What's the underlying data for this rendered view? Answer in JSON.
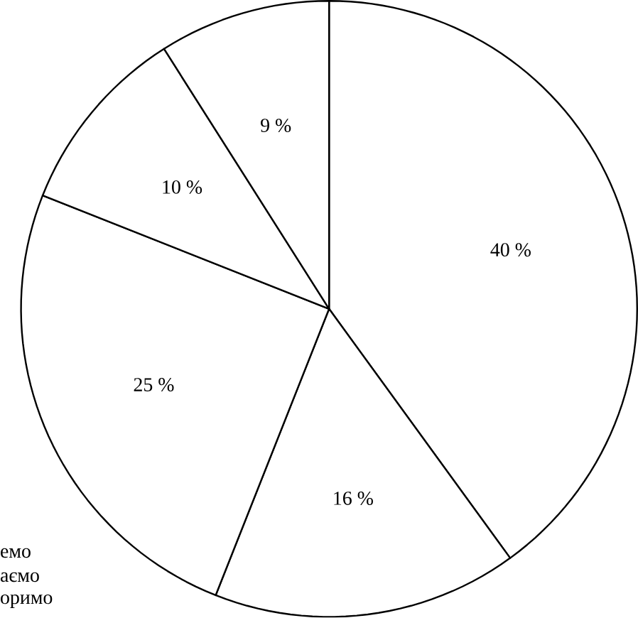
{
  "chart_data": {
    "type": "pie",
    "categories": [
      null,
      null,
      null,
      null,
      null
    ],
    "values": [
      40,
      16,
      25,
      10,
      9
    ],
    "value_labels": [
      "40 %",
      "16 %",
      "25 %",
      "10 %",
      "9 %"
    ],
    "colors": [
      "#ffffff",
      "#ffffff",
      "#ffffff",
      "#ffffff",
      "#ffffff"
    ],
    "annotations": [
      "емо",
      "аємо",
      "оримо"
    ]
  }
}
